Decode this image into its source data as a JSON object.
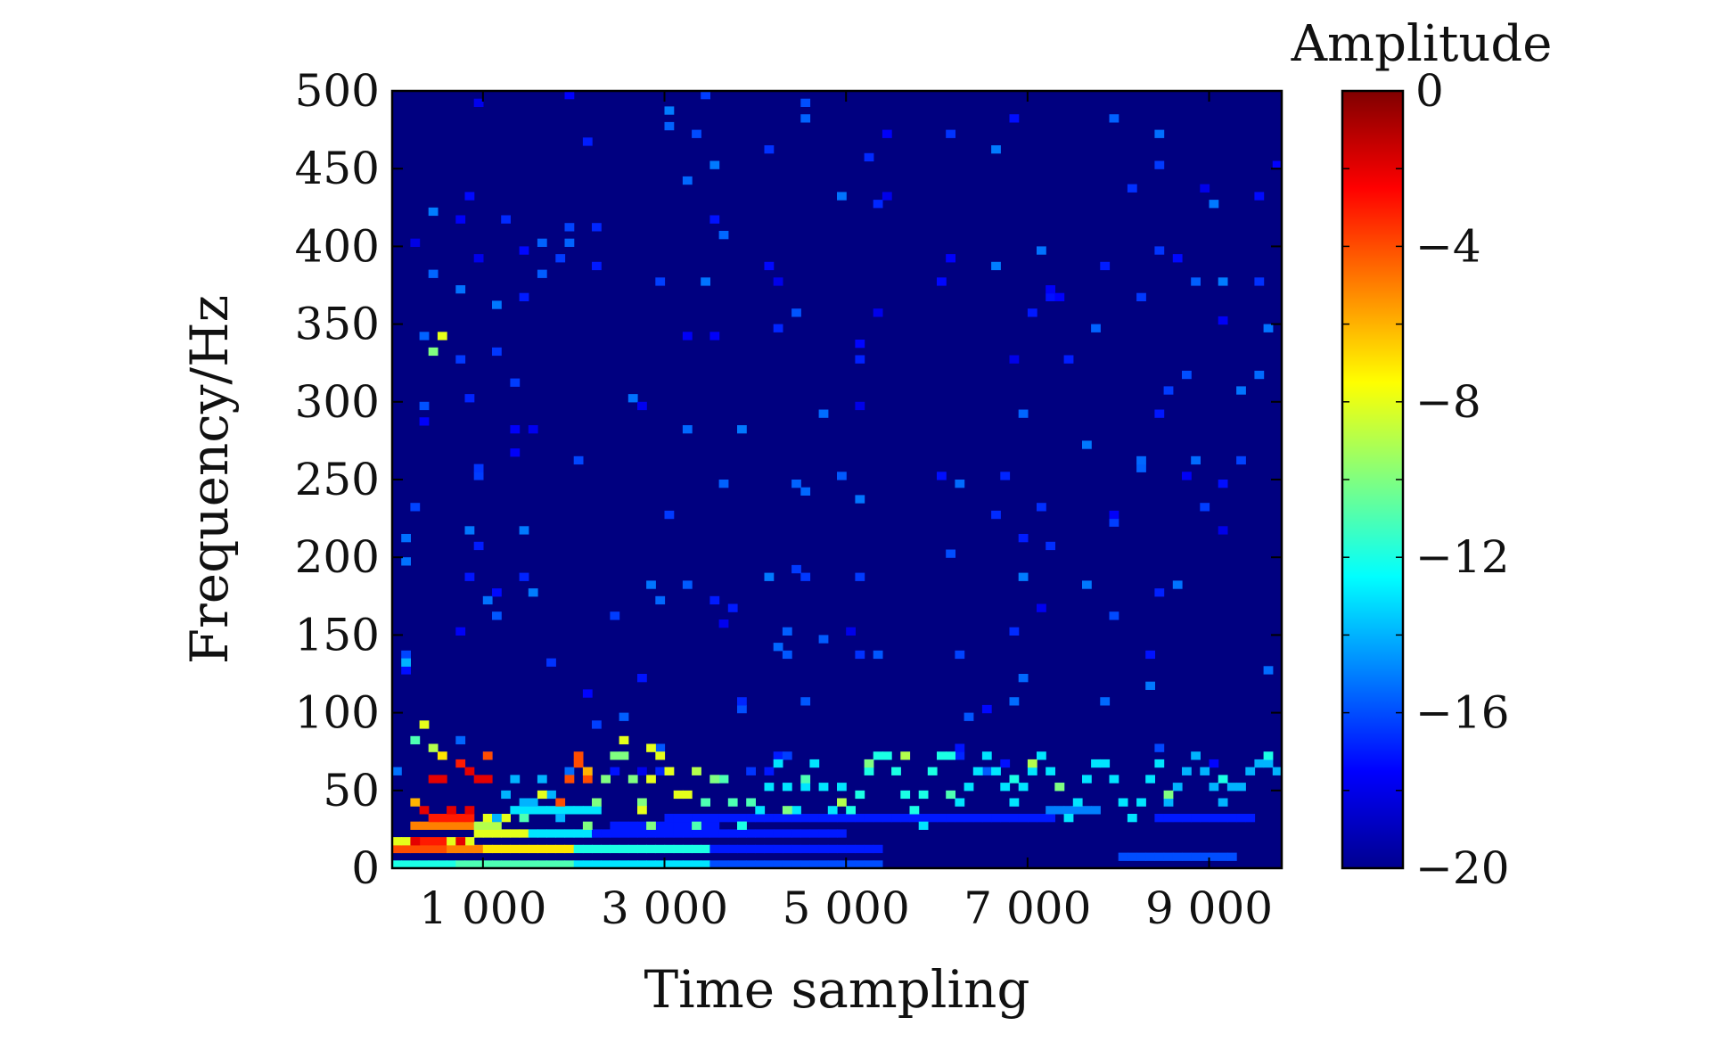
{
  "chart_data": {
    "type": "heatmap",
    "title": "",
    "xlabel": "Time sampling",
    "ylabel": "Frequency/Hz",
    "xlim": [
      0,
      9800
    ],
    "ylim": [
      0,
      500
    ],
    "x_ticks": [
      1000,
      3000,
      5000,
      7000,
      9000
    ],
    "x_tick_labels": [
      "1 000",
      "3 000",
      "5 000",
      "7 000",
      "9 000"
    ],
    "y_ticks": [
      0,
      50,
      100,
      150,
      200,
      250,
      300,
      350,
      400,
      450,
      500
    ],
    "y_tick_labels": [
      "0",
      "50",
      "100",
      "150",
      "200",
      "250",
      "300",
      "350",
      "400",
      "450",
      "500"
    ],
    "grid": false,
    "colorbar": {
      "title": "Amplitude",
      "range": [
        -20,
        0
      ],
      "ticks": [
        0,
        -4,
        -8,
        -12,
        -16,
        -20
      ],
      "tick_labels": [
        "0",
        "−4",
        "−8",
        "−12",
        "−16",
        "−20"
      ],
      "colormap": "jet"
    },
    "background_value": -20,
    "cell_size": {
      "time": 100,
      "frequency": 5
    },
    "bands": [
      {
        "t_start": 0,
        "t_end": 700,
        "f": 0,
        "value": -12
      },
      {
        "t_start": 700,
        "t_end": 2000,
        "f": 0,
        "value": -11
      },
      {
        "t_start": 2000,
        "t_end": 3500,
        "f": 0,
        "value": -13
      },
      {
        "t_start": 3500,
        "t_end": 5400,
        "f": 0,
        "value": -16
      },
      {
        "t_start": 8000,
        "t_end": 9300,
        "f": 5,
        "value": -16
      },
      {
        "t_start": 0,
        "t_end": 600,
        "f": 10,
        "value": -4
      },
      {
        "t_start": 600,
        "t_end": 1000,
        "f": 10,
        "value": -5
      },
      {
        "t_start": 1000,
        "t_end": 2000,
        "f": 10,
        "value": -7
      },
      {
        "t_start": 2000,
        "t_end": 3500,
        "f": 10,
        "value": -12
      },
      {
        "t_start": 3500,
        "t_end": 5400,
        "f": 10,
        "value": -17
      },
      {
        "t_start": 200,
        "t_end": 600,
        "f": 15,
        "value": -3
      },
      {
        "t_start": 600,
        "t_end": 900,
        "f": 15,
        "value": -8
      },
      {
        "t_start": 0,
        "t_end": 200,
        "f": 15,
        "value": -8
      },
      {
        "t_start": 900,
        "t_end": 1500,
        "f": 20,
        "value": -8
      },
      {
        "t_start": 1500,
        "t_end": 2200,
        "f": 20,
        "value": -13
      },
      {
        "t_start": 2200,
        "t_end": 5000,
        "f": 20,
        "value": -17
      },
      {
        "t_start": 200,
        "t_end": 900,
        "f": 25,
        "value": -5
      },
      {
        "t_start": 900,
        "t_end": 1200,
        "f": 25,
        "value": -9
      },
      {
        "t_start": 2400,
        "t_end": 3600,
        "f": 25,
        "value": -17
      },
      {
        "t_start": 400,
        "t_end": 900,
        "f": 30,
        "value": -3
      },
      {
        "t_start": 1000,
        "t_end": 1300,
        "f": 30,
        "value": -8
      },
      {
        "t_start": 3000,
        "t_end": 7300,
        "f": 30,
        "value": -17
      },
      {
        "t_start": 8400,
        "t_end": 9500,
        "f": 30,
        "value": -17
      },
      {
        "t_start": 1300,
        "t_end": 2300,
        "f": 35,
        "value": -13
      },
      {
        "t_start": 7200,
        "t_end": 7800,
        "f": 35,
        "value": -15
      }
    ],
    "curves": [
      {
        "t_start": 200,
        "t_end": 1100,
        "f0": 40,
        "amp": 25,
        "period": 500,
        "value": -2
      },
      {
        "t_start": 1100,
        "t_end": 1900,
        "f0": 45,
        "amp": 15,
        "period": 350,
        "value": -14
      },
      {
        "t_start": 1800,
        "t_end": 2200,
        "f0": 55,
        "amp": 15,
        "period": 400,
        "value": -4
      },
      {
        "t_start": 2100,
        "t_end": 2900,
        "f0": 50,
        "amp": 25,
        "period": 700,
        "value": -10
      },
      {
        "t_start": 2700,
        "t_end": 3300,
        "f0": 55,
        "amp": 20,
        "period": 450,
        "value": -8
      },
      {
        "t_start": 3300,
        "t_end": 4000,
        "f0": 45,
        "amp": 20,
        "period": 500,
        "value": -11
      },
      {
        "t_start": 4000,
        "t_end": 5000,
        "f0": 50,
        "amp": 15,
        "period": 400,
        "value": -13
      },
      {
        "t_start": 5000,
        "t_end": 6200,
        "f0": 55,
        "amp": 20,
        "period": 700,
        "value": -12
      },
      {
        "t_start": 6200,
        "t_end": 7400,
        "f0": 55,
        "amp": 15,
        "period": 600,
        "value": -13
      },
      {
        "t_start": 7400,
        "t_end": 8500,
        "f0": 50,
        "amp": 20,
        "period": 700,
        "value": -13
      },
      {
        "t_start": 8500,
        "t_end": 9300,
        "f0": 55,
        "amp": 15,
        "period": 600,
        "value": -14
      },
      {
        "t_start": 9300,
        "t_end": 9800,
        "f0": 60,
        "amp": 10,
        "period": 500,
        "value": -14
      }
    ],
    "spots": [
      {
        "t": 500,
        "f": 340,
        "value": -8
      },
      {
        "t": 400,
        "f": 330,
        "value": -10
      },
      {
        "t": 100,
        "f": 130,
        "value": -14
      },
      {
        "t": 200,
        "f": 80,
        "value": -11
      },
      {
        "t": 300,
        "f": 90,
        "value": -8
      },
      {
        "t": 400,
        "f": 75,
        "value": -9
      },
      {
        "t": 500,
        "f": 70,
        "value": -7
      },
      {
        "t": 700,
        "f": 65,
        "value": -3
      },
      {
        "t": 800,
        "f": 60,
        "value": -2
      },
      {
        "t": 1000,
        "f": 70,
        "value": -4
      },
      {
        "t": 2000,
        "f": 65,
        "value": -4
      },
      {
        "t": 2100,
        "f": 60,
        "value": -6
      },
      {
        "t": 1600,
        "f": 45,
        "value": -8
      },
      {
        "t": 2500,
        "f": 80,
        "value": -8
      },
      {
        "t": 2800,
        "f": 75,
        "value": -8
      },
      {
        "t": 3300,
        "f": 60,
        "value": -9
      },
      {
        "t": 3500,
        "f": 55,
        "value": -10
      },
      {
        "t": 4500,
        "f": 55,
        "value": -11
      },
      {
        "t": 5200,
        "f": 65,
        "value": -10
      },
      {
        "t": 5600,
        "f": 70,
        "value": -9
      },
      {
        "t": 6100,
        "f": 45,
        "value": -11
      },
      {
        "t": 6800,
        "f": 55,
        "value": -12
      },
      {
        "t": 7000,
        "f": 65,
        "value": -9
      },
      {
        "t": 7300,
        "f": 50,
        "value": -10
      },
      {
        "t": 8500,
        "f": 45,
        "value": -10
      },
      {
        "t": 9100,
        "f": 55,
        "value": -12
      },
      {
        "t": 9600,
        "f": 70,
        "value": -12
      },
      {
        "t": 1400,
        "f": 30,
        "value": -11
      },
      {
        "t": 3800,
        "f": 25,
        "value": -12
      },
      {
        "t": 5800,
        "f": 25,
        "value": -13
      },
      {
        "t": 4300,
        "f": 35,
        "value": -10
      },
      {
        "t": 4900,
        "f": 40,
        "value": -9
      },
      {
        "t": 200,
        "f": 40,
        "value": -6
      }
    ],
    "noise": {
      "density": 0.022,
      "value_range": [
        -18,
        -15
      ],
      "f_range": [
        60,
        500
      ],
      "seed": 7
    }
  }
}
